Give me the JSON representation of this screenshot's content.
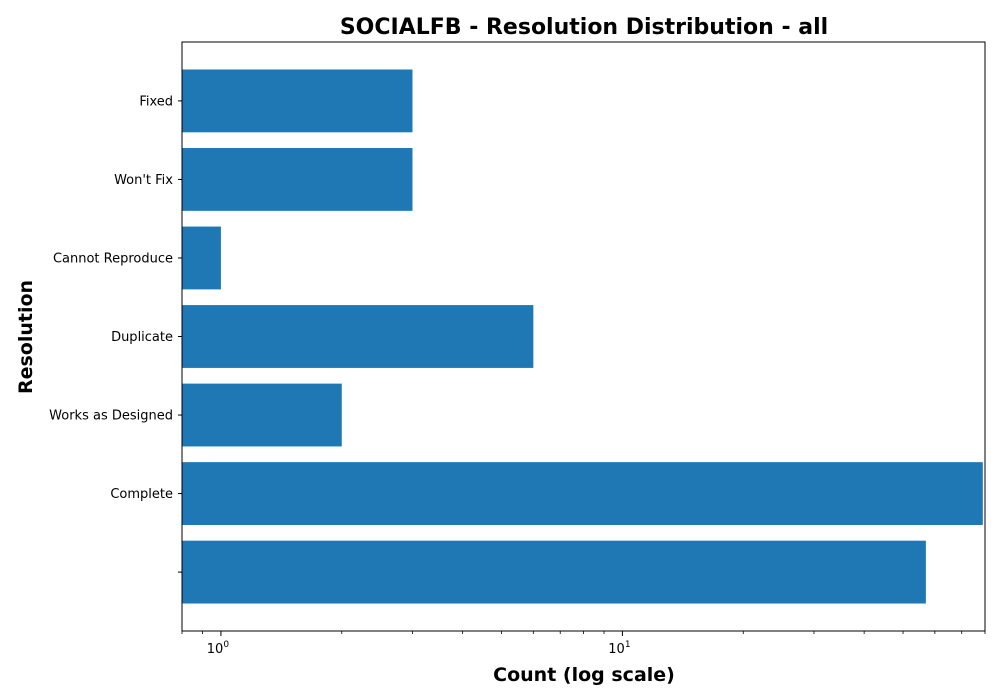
{
  "chart_data": {
    "type": "bar",
    "orientation": "horizontal",
    "title": "SOCIALFB - Resolution Distribution - all",
    "xlabel": "Count (log scale)",
    "ylabel": "Resolution",
    "x_scale": "log",
    "xlim": [
      0.8,
      80
    ],
    "x_ticks": [
      {
        "value": 1,
        "base": "10",
        "exp": "0"
      },
      {
        "value": 10,
        "base": "10",
        "exp": "1"
      }
    ],
    "categories": [
      "Fixed",
      "Won't Fix",
      "Cannot Reproduce",
      "Duplicate",
      "Works as Designed",
      "Complete",
      ""
    ],
    "values": [
      3,
      3,
      1,
      6,
      2,
      79,
      57
    ],
    "bar_color": "#1f77b4",
    "grid": false,
    "legend": "none"
  }
}
